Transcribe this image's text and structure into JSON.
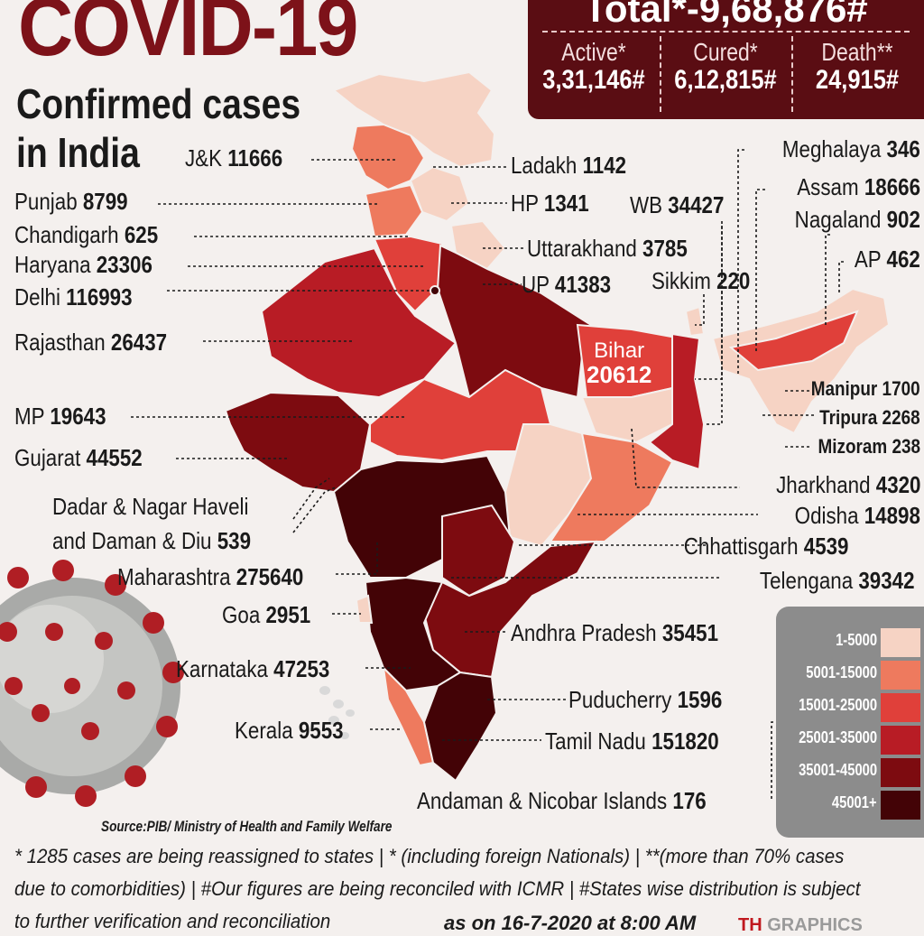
{
  "header": {
    "title": "COVID-19",
    "subtitle_line1": "Confirmed cases",
    "subtitle_line2": "in India"
  },
  "totals": {
    "total_label": "Total*-9,68,876#",
    "active_label": "Active*",
    "active_value": "3,31,146#",
    "cured_label": "Cured*",
    "cured_value": "6,12,815#",
    "death_label": "Death**",
    "death_value": "24,915#"
  },
  "states": {
    "jk": {
      "name": "J&K",
      "cases": "11666"
    },
    "punjab": {
      "name": "Punjab",
      "cases": "8799"
    },
    "chandigarh": {
      "name": "Chandigarh",
      "cases": "625"
    },
    "haryana": {
      "name": "Haryana",
      "cases": "23306"
    },
    "delhi": {
      "name": "Delhi",
      "cases": "116993"
    },
    "rajasthan": {
      "name": "Rajasthan",
      "cases": "26437"
    },
    "mp": {
      "name": "MP",
      "cases": "19643"
    },
    "gujarat": {
      "name": "Gujarat",
      "cases": "44552"
    },
    "dnh_line1": "Dadar & Nagar Haveli",
    "dnh_line2": "and Daman & Diu",
    "dnh_cases": "539",
    "maharashtra": {
      "name": "Maharashtra",
      "cases": "275640"
    },
    "goa": {
      "name": "Goa",
      "cases": "2951"
    },
    "karnataka": {
      "name": "Karnataka",
      "cases": "47253"
    },
    "kerala": {
      "name": "Kerala",
      "cases": "9553"
    },
    "ladakh": {
      "name": "Ladakh",
      "cases": "1142"
    },
    "hp": {
      "name": "HP",
      "cases": "1341"
    },
    "wb": {
      "name": "WB",
      "cases": "34427"
    },
    "uttarakhand": {
      "name": "Uttarakhand",
      "cases": "3785"
    },
    "up": {
      "name": "UP",
      "cases": "41383"
    },
    "sikkim": {
      "name": "Sikkim",
      "cases": "220"
    },
    "meghalaya": {
      "name": "Meghalaya",
      "cases": "346"
    },
    "assam": {
      "name": "Assam",
      "cases": "18666"
    },
    "nagaland": {
      "name": "Nagaland",
      "cases": "902"
    },
    "ap_ne": {
      "name": "AP",
      "cases": "462"
    },
    "bihar": {
      "name": "Bihar",
      "cases": "20612"
    },
    "manipur": {
      "name": "Manipur",
      "cases": "1700"
    },
    "tripura": {
      "name": "Tripura",
      "cases": "2268"
    },
    "mizoram": {
      "name": "Mizoram",
      "cases": "238"
    },
    "jharkhand": {
      "name": "Jharkhand",
      "cases": "4320"
    },
    "odisha": {
      "name": "Odisha",
      "cases": "14898"
    },
    "chhattisgarh": {
      "name": "Chhattisgarh",
      "cases": "4539"
    },
    "telengana": {
      "name": "Telengana",
      "cases": "39342"
    },
    "andhra": {
      "name": "Andhra Pradesh",
      "cases": "35451"
    },
    "puducherry": {
      "name": "Puducherry",
      "cases": "1596"
    },
    "tamilnadu": {
      "name": "Tamil Nadu",
      "cases": "151820"
    },
    "andaman": {
      "name": "Andaman & Nicobar Islands",
      "cases": "176"
    }
  },
  "legend": {
    "items": [
      {
        "label": "1-5000",
        "color": "#f6d3c4"
      },
      {
        "label": "5001-15000",
        "color": "#ee7a5e"
      },
      {
        "label": "15001-25000",
        "color": "#e0403a"
      },
      {
        "label": "25001-35000",
        "color": "#b81c25"
      },
      {
        "label": "35001-45000",
        "color": "#7d0b10"
      },
      {
        "label": "45001+",
        "color": "#430306"
      }
    ]
  },
  "source": "Source:PIB/ Ministry of Health and Family Welfare",
  "footnotes": {
    "line1": "* 1285 cases are being reassigned to states | * (including foreign Nationals) | **(more than 70% cases",
    "line2": "due to comorbidities) | #Our figures are being reconciled with ICMR  | #States wise distribution is subject",
    "line3": "to further verification and reconciliation",
    "as_on": "as on 16-7-2020 at 8:00 AM",
    "brand_part1": "TH",
    "brand_part2": "GRAPHICS"
  }
}
